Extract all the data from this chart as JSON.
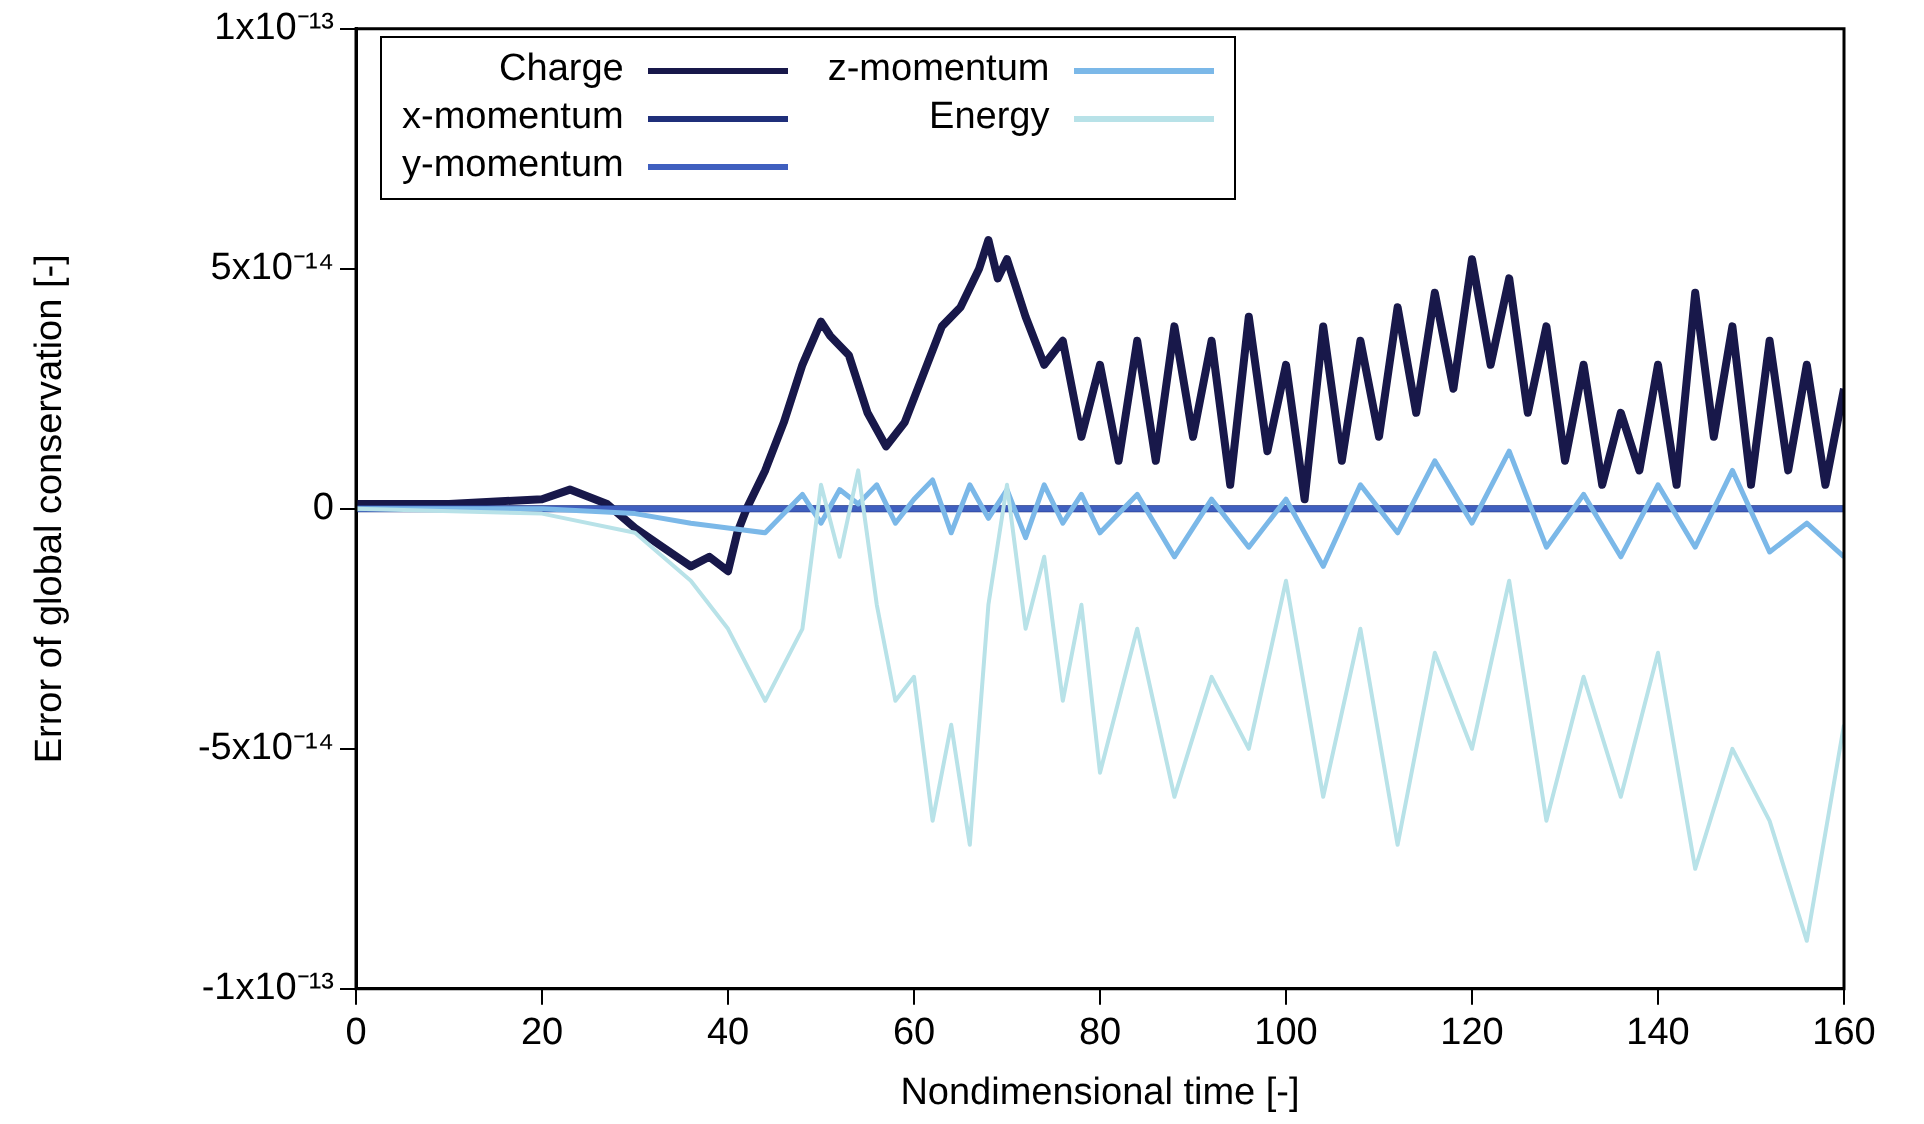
{
  "chart_data": {
    "type": "line",
    "xlabel": "Nondimensional time [-]",
    "ylabel": "Error of global conservation [-]",
    "xlim": [
      0,
      160
    ],
    "xticks": [
      0,
      20,
      40,
      60,
      80,
      100,
      120,
      140,
      160
    ],
    "ylim": [
      -1e-13,
      1e-13
    ],
    "yticks": [
      {
        "value": -1e-13,
        "label": "-1x10⁻¹³"
      },
      {
        "value": -5e-14,
        "label": "-5x10⁻¹⁴"
      },
      0,
      {
        "value": 5e-14,
        "label": "5x10⁻¹⁴"
      },
      {
        "value": 1e-13,
        "label": "1x10⁻¹³"
      }
    ],
    "grid": false,
    "legend": "top left",
    "marker": "none",
    "line_style": "solid",
    "series": [
      {
        "name": "Charge",
        "color": "#18184a",
        "x": [
          0,
          10,
          20,
          23,
          27,
          30,
          33,
          36,
          38,
          40,
          41,
          42,
          44,
          46,
          48,
          50,
          51,
          53,
          55,
          57,
          59,
          61,
          63,
          65,
          67,
          68,
          69,
          70,
          72,
          74,
          76,
          78,
          80,
          82,
          84,
          86,
          88,
          90,
          92,
          94,
          96,
          98,
          100,
          102,
          104,
          106,
          108,
          110,
          112,
          114,
          116,
          118,
          120,
          122,
          124,
          126,
          128,
          130,
          132,
          134,
          136,
          138,
          140,
          142,
          144,
          146,
          148,
          150,
          152,
          154,
          156,
          158,
          160
        ],
        "values": [
          1e-15,
          1e-15,
          2e-15,
          4e-15,
          1e-15,
          -4e-15,
          -8e-15,
          -1.2e-14,
          -1e-14,
          -1.3e-14,
          -5e-15,
          0,
          8e-15,
          1.8e-14,
          3e-14,
          3.9e-14,
          3.6e-14,
          3.2e-14,
          2e-14,
          1.3e-14,
          1.8e-14,
          2.8e-14,
          3.8e-14,
          4.2e-14,
          5e-14,
          5.6e-14,
          4.8e-14,
          5.2e-14,
          4e-14,
          3e-14,
          3.5e-14,
          1.5e-14,
          3e-14,
          1e-14,
          3.5e-14,
          1e-14,
          3.8e-14,
          1.5e-14,
          3.5e-14,
          5e-15,
          4e-14,
          1.2e-14,
          3e-14,
          2e-15,
          3.8e-14,
          1e-14,
          3.5e-14,
          1.5e-14,
          4.2e-14,
          2e-14,
          4.5e-14,
          2.5e-14,
          5.2e-14,
          3e-14,
          4.8e-14,
          2e-14,
          3.8e-14,
          1e-14,
          3e-14,
          5e-15,
          2e-14,
          8e-15,
          3e-14,
          5e-15,
          4.5e-14,
          1.5e-14,
          3.8e-14,
          5e-15,
          3.5e-14,
          8e-15,
          3e-14,
          5e-15,
          2.5e-14
        ]
      },
      {
        "name": "x-momentum",
        "color": "#1f2f7a",
        "x": [
          0,
          160
        ],
        "values": [
          0,
          0
        ]
      },
      {
        "name": "y-momentum",
        "color": "#3f5fbf",
        "x": [
          0,
          160
        ],
        "values": [
          0,
          0
        ]
      },
      {
        "name": "z-momentum",
        "color": "#7bb8e8",
        "x": [
          0,
          20,
          30,
          36,
          40,
          44,
          48,
          50,
          52,
          54,
          56,
          58,
          60,
          62,
          64,
          66,
          68,
          70,
          72,
          74,
          76,
          78,
          80,
          84,
          88,
          92,
          96,
          100,
          104,
          108,
          112,
          116,
          120,
          124,
          128,
          132,
          136,
          140,
          144,
          148,
          152,
          156,
          160
        ],
        "values": [
          0,
          0,
          -1e-15,
          -3e-15,
          -4e-15,
          -5e-15,
          3e-15,
          -3e-15,
          4e-15,
          1e-15,
          5e-15,
          -3e-15,
          2e-15,
          6e-15,
          -5e-15,
          5e-15,
          -2e-15,
          4e-15,
          -6e-15,
          5e-15,
          -3e-15,
          3e-15,
          -5e-15,
          3e-15,
          -1e-14,
          2e-15,
          -8e-15,
          2e-15,
          -1.2e-14,
          5e-15,
          -5e-15,
          1e-14,
          -3e-15,
          1.2e-14,
          -8e-15,
          3e-15,
          -1e-14,
          5e-15,
          -8e-15,
          8e-15,
          -9e-15,
          -3e-15,
          -1e-14
        ]
      },
      {
        "name": "Energy",
        "color": "#b8e2e8",
        "x": [
          0,
          20,
          30,
          36,
          40,
          44,
          48,
          50,
          52,
          54,
          56,
          58,
          60,
          62,
          64,
          66,
          68,
          70,
          72,
          74,
          76,
          78,
          80,
          84,
          88,
          92,
          96,
          100,
          104,
          108,
          112,
          116,
          120,
          124,
          128,
          132,
          136,
          140,
          144,
          148,
          152,
          156,
          160
        ],
        "values": [
          0,
          -1e-15,
          -5e-15,
          -1.5e-14,
          -2.5e-14,
          -4e-14,
          -2.5e-14,
          5e-15,
          -1e-14,
          8e-15,
          -2e-14,
          -4e-14,
          -3.5e-14,
          -6.5e-14,
          -4.5e-14,
          -7e-14,
          -2e-14,
          5e-15,
          -2.5e-14,
          -1e-14,
          -4e-14,
          -2e-14,
          -5.5e-14,
          -2.5e-14,
          -6e-14,
          -3.5e-14,
          -5e-14,
          -1.5e-14,
          -6e-14,
          -2.5e-14,
          -7e-14,
          -3e-14,
          -5e-14,
          -1.5e-14,
          -6.5e-14,
          -3.5e-14,
          -6e-14,
          -3e-14,
          -7.5e-14,
          -5e-14,
          -6.5e-14,
          -9e-14,
          -4.5e-14
        ]
      }
    ]
  }
}
